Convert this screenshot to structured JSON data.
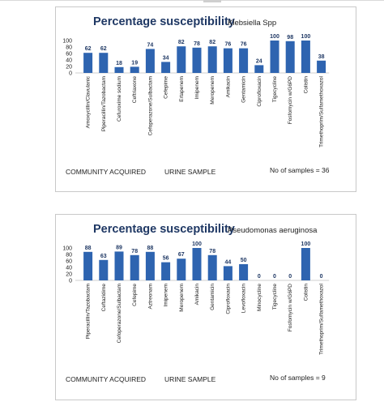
{
  "chart_data": [
    {
      "type": "bar",
      "title": "Percentage susceptibility",
      "subtitle": "Klebsiella Spp",
      "ylim": [
        0,
        100
      ],
      "yticks": [
        "0",
        "20",
        "40",
        "60",
        "80",
        "100"
      ],
      "grid": false,
      "categories": [
        "Amoxycillin/Clavulanic",
        "Piperacillin/Tazobactam",
        "Cefuroxime sodium",
        "Ceftriaxone",
        "Cefoperazone/Sulbactam",
        "Cefepime",
        "Ertapenem",
        "Imipenem",
        "Meropenem",
        "Amikacin",
        "Gentamicin",
        "Ciprofloxacin",
        "Tigecycline",
        "Fosfomycin w/G6PD",
        "Colistin",
        "Trimethoprim/Sulfamethoxazol"
      ],
      "values": [
        62,
        62,
        18,
        19,
        74,
        34,
        82,
        78,
        82,
        76,
        76,
        24,
        100,
        98,
        100,
        38
      ],
      "bar_color": "#2e64b0",
      "footer": {
        "left": "COMMUNITY ACQUIRED",
        "middle": "URINE SAMPLE",
        "right": "No of samples = 36"
      }
    },
    {
      "type": "bar",
      "title": "Percentage susceptibility",
      "subtitle": "Pseudomonas aeruginosa",
      "ylim": [
        0,
        100
      ],
      "yticks": [
        "0",
        "20",
        "40",
        "60",
        "80",
        "100"
      ],
      "grid": false,
      "categories": [
        "Piperacillin/Tazobactam",
        "Ceftazidime",
        "Cefoperazone/Sulbactam",
        "Cefepime",
        "Aztreonam",
        "Imipenem",
        "Meropenem",
        "Amikacin",
        "Gentamicin",
        "Ciprofloxacin",
        "Levofloxacin",
        "Minocycline",
        "Tigecycline",
        "Fosfomycin w/G6PD",
        "Colistin",
        "Trimethoprim/Sulfamethoxazol"
      ],
      "values": [
        88,
        63,
        89,
        78,
        88,
        56,
        67,
        100,
        78,
        44,
        50,
        0,
        0,
        0,
        100,
        0
      ],
      "bar_color": "#2e64b0",
      "footer": {
        "left": "COMMUNITY ACQUIRED",
        "middle": "URINE SAMPLE",
        "right": "No of samples = 9"
      }
    }
  ]
}
